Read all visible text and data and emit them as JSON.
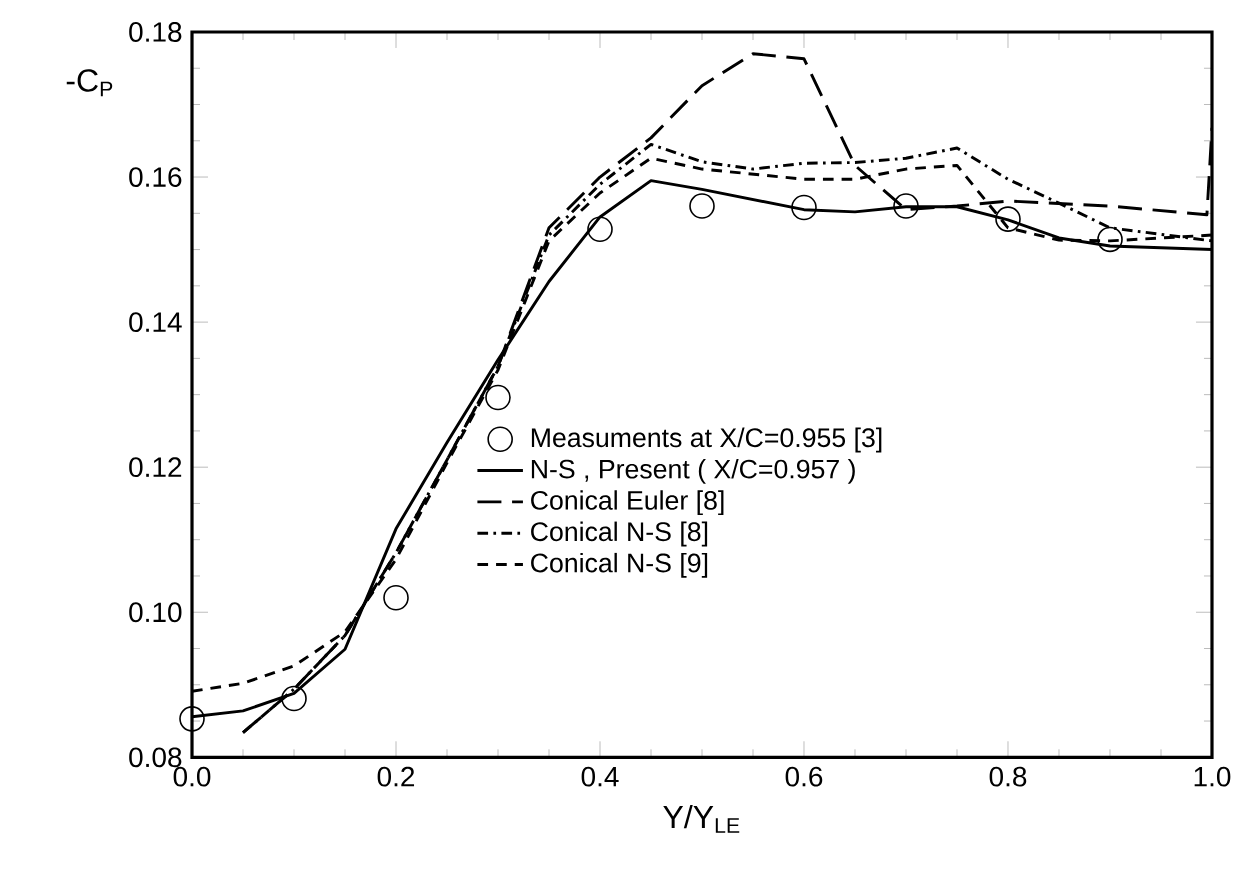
{
  "chart_data": {
    "type": "line",
    "xlabel": "Y/Y$_{LE}$",
    "ylabel": "-C$_{P}$",
    "xlim": [
      0,
      1
    ],
    "ylim": [
      0.08,
      0.18
    ],
    "xticks": [
      {
        "value": 0,
        "label": "0.0"
      },
      {
        "value": 0.2,
        "label": "0.2"
      },
      {
        "value": 0.4,
        "label": "0.4"
      },
      {
        "value": 0.6,
        "label": "0.6"
      },
      {
        "value": 0.8,
        "label": "0.8"
      },
      {
        "value": 1,
        "label": "1.0"
      }
    ],
    "yticks": [
      0.08,
      {
        "value": 0.1,
        "label": "0.10"
      },
      0.12,
      0.14,
      0.16,
      0.18
    ],
    "legend": "bottom right",
    "series": [
      {
        "name": "Measuments at X/C=0.955 [3]",
        "type": "scatter",
        "marker": "circle",
        "color": "#000000",
        "x": [
          0,
          0.1,
          0.2,
          0.3,
          0.4,
          0.5,
          0.6,
          0.7,
          0.8,
          0.9
        ],
        "values": [
          0.0853,
          0.0881,
          0.102,
          0.1296,
          0.1528,
          0.156,
          0.1558,
          0.156,
          0.1542,
          0.1514
        ]
      },
      {
        "name": "N-S , Present ( X/C=0.957 )",
        "line_style": "solid",
        "color": "#000000",
        "x": [
          0,
          0.05,
          0.1,
          0.15,
          0.2,
          0.25,
          0.3,
          0.35,
          0.4,
          0.45,
          0.5,
          0.6,
          0.65,
          0.7,
          0.75,
          0.8,
          0.85,
          0.9,
          1.0
        ],
        "values": [
          0.0856,
          0.0864,
          0.0888,
          0.0949,
          0.1115,
          0.1234,
          0.1348,
          0.1456,
          0.1545,
          0.1595,
          0.1583,
          0.1555,
          0.1552,
          0.1559,
          0.1559,
          0.1541,
          0.1516,
          0.1505,
          0.15
        ]
      },
      {
        "name": "Conical Euler [8]",
        "line_style": "long dashed",
        "color": "#000000",
        "x": [
          0.05,
          0.1,
          0.15,
          0.2,
          0.25,
          0.3,
          0.35,
          0.4,
          0.45,
          0.5,
          0.55,
          0.6,
          0.65,
          0.7,
          0.75,
          0.8,
          0.9,
          0.995,
          1.0
        ],
        "values": [
          0.0834,
          0.0894,
          0.0968,
          0.1082,
          0.121,
          0.1339,
          0.153,
          0.16,
          0.1654,
          0.1726,
          0.177,
          0.1763,
          0.1616,
          0.1555,
          0.156,
          0.1567,
          0.156,
          0.1548,
          0.1668
        ]
      },
      {
        "name": "Conical N-S [8]",
        "line_style": "dashdot",
        "color": "#000000",
        "x": [
          0.05,
          0.1,
          0.15,
          0.2,
          0.25,
          0.3,
          0.35,
          0.4,
          0.45,
          0.5,
          0.55,
          0.6,
          0.65,
          0.7,
          0.75,
          0.8,
          0.85,
          0.9,
          1.0
        ],
        "values": [
          0.0834,
          0.0894,
          0.0968,
          0.1082,
          0.121,
          0.1339,
          0.152,
          0.159,
          0.1645,
          0.1621,
          0.1611,
          0.1619,
          0.162,
          0.1626,
          0.164,
          0.1597,
          0.1564,
          0.153,
          0.1512
        ]
      },
      {
        "name": "Conical N-S [9]",
        "line_style": "dashed",
        "color": "#000000",
        "x": [
          0,
          0.05,
          0.1,
          0.15,
          0.2,
          0.25,
          0.3,
          0.35,
          0.4,
          0.45,
          0.5,
          0.6,
          0.65,
          0.7,
          0.75,
          0.8,
          0.85,
          0.9,
          1.0
        ],
        "values": [
          0.0891,
          0.0902,
          0.0926,
          0.0973,
          0.1073,
          0.1206,
          0.1334,
          0.1512,
          0.1578,
          0.1626,
          0.1611,
          0.1597,
          0.1597,
          0.1611,
          0.1616,
          0.153,
          0.1513,
          0.1512,
          0.152
        ]
      }
    ]
  }
}
